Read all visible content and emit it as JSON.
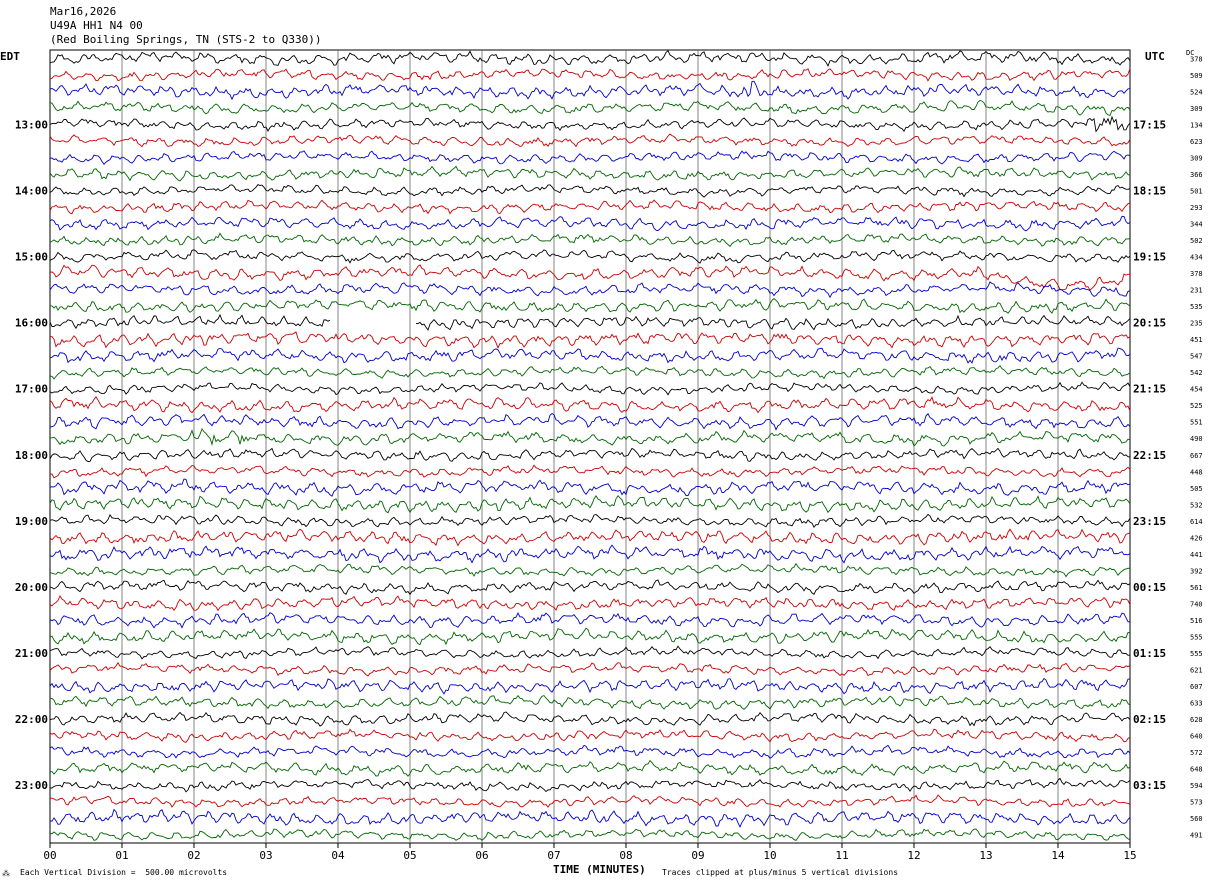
{
  "header": {
    "date": "Mar16,2026",
    "station": "U49A HH1 N4 00",
    "location": "(Red Boiling Springs, TN (STS-2 to Q330))"
  },
  "left_zone": "EDT",
  "right_zone": "UTC",
  "dc_label": "DC",
  "footer": {
    "scale": "Each Vertical Division =  500.00 microvolts",
    "clip": "Traces clipped at plus/minus 5 vertical divisions",
    "mark": "⁂"
  },
  "colors": {
    "black": "#000000",
    "red": "#cc0000",
    "blue": "#0000cc",
    "green": "#006600",
    "grid": "#666666"
  },
  "chart_data": {
    "type": "line",
    "xlabel": "TIME (MINUTES)",
    "x_ticks": [
      "00",
      "01",
      "02",
      "03",
      "04",
      "05",
      "06",
      "07",
      "08",
      "09",
      "10",
      "11",
      "12",
      "13",
      "14",
      "15"
    ],
    "xlim": [
      0,
      15
    ],
    "left_hour_labels": [
      "13:00",
      "14:00",
      "15:00",
      "16:00",
      "17:00",
      "18:00",
      "19:00",
      "20:00",
      "21:00",
      "22:00",
      "23:00"
    ],
    "right_hour_labels": [
      "17:15",
      "18:15",
      "19:15",
      "20:15",
      "21:15",
      "22:15",
      "23:15",
      "00:15",
      "01:15",
      "02:15",
      "03:15"
    ],
    "trace_colors_cycle": [
      "black",
      "red",
      "blue",
      "green"
    ],
    "dc_offsets": [
      378,
      509,
      524,
      309,
      134,
      623,
      309,
      366,
      501,
      293,
      344,
      502,
      434,
      378,
      231,
      535,
      235,
      451,
      547,
      542,
      454,
      525,
      551,
      490,
      667,
      448,
      505,
      532,
      614,
      426,
      441,
      392,
      561,
      740,
      516,
      555,
      555,
      621,
      607,
      633,
      628,
      640,
      572,
      648,
      594,
      573,
      560,
      491
    ]
  }
}
